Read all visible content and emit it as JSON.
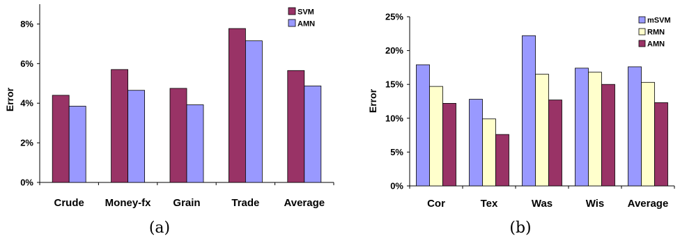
{
  "colors": {
    "SVM": "#993366",
    "AMN": "#9999FF",
    "mSVM": "#9999FF",
    "RMN": "#FFFFCC",
    "AMN_b": "#993366"
  },
  "chart_data": [
    {
      "id": "a",
      "caption": "(a)",
      "type": "bar",
      "ylabel": "Error",
      "xlabel": "",
      "ylim": [
        0,
        0.09
      ],
      "yticks": [
        0,
        0.02,
        0.04,
        0.06,
        0.08
      ],
      "ytick_labels": [
        "0%",
        "2%",
        "4%",
        "6%",
        "8%"
      ],
      "grid": false,
      "legend_position": "top-right",
      "categories": [
        "Crude",
        "Money-fx",
        "Grain",
        "Trade",
        "Average"
      ],
      "series": [
        {
          "name": "SVM",
          "color": "#993366",
          "values": [
            0.044,
            0.057,
            0.0475,
            0.0777,
            0.0565
          ]
        },
        {
          "name": "AMN",
          "color": "#9999FF",
          "values": [
            0.0385,
            0.0465,
            0.0392,
            0.0715,
            0.0487
          ]
        }
      ]
    },
    {
      "id": "b",
      "caption": "(b)",
      "type": "bar",
      "ylabel": "Error",
      "xlabel": "",
      "ylim": [
        0,
        0.25
      ],
      "yticks": [
        0,
        0.05,
        0.1,
        0.15,
        0.2,
        0.25
      ],
      "ytick_labels": [
        "0%",
        "5%",
        "10%",
        "15%",
        "20%",
        "25%"
      ],
      "grid": false,
      "legend_position": "top-right",
      "categories": [
        "Cor",
        "Tex",
        "Was",
        "Wis",
        "Average"
      ],
      "series": [
        {
          "name": "mSVM",
          "color": "#9999FF",
          "values": [
            0.179,
            0.128,
            0.222,
            0.174,
            0.176
          ]
        },
        {
          "name": "RMN",
          "color": "#FFFFCC",
          "values": [
            0.147,
            0.099,
            0.165,
            0.168,
            0.153
          ]
        },
        {
          "name": "AMN",
          "color": "#993366",
          "values": [
            0.122,
            0.076,
            0.127,
            0.15,
            0.123
          ]
        }
      ]
    }
  ]
}
